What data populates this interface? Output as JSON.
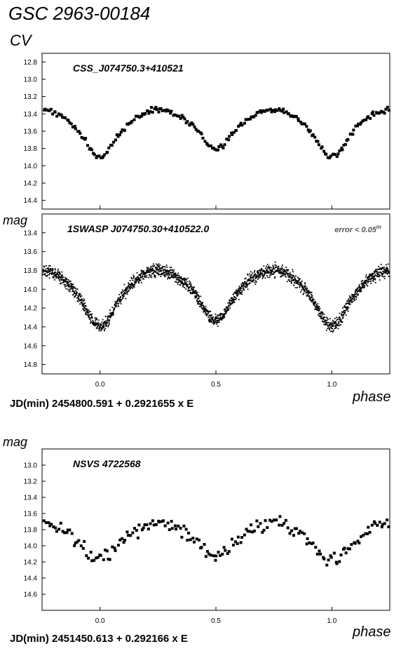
{
  "header": {
    "title": "GSC 2963-00184",
    "band": "CV"
  },
  "labels": {
    "ylabel_top": "mag",
    "ylabel_bottom": "mag",
    "xlabel_top": "phase",
    "xlabel_bottom": "phase",
    "ephemeris_top": "JD(min) 2454800.591  + 0.2921655 x E",
    "ephemeris_bottom": "JD(min) 2451450.613  + 0.292166 x E"
  },
  "chart_data": [
    {
      "type": "scatter",
      "title": "CSS_J074750.3+410521",
      "xlabel": "",
      "ylabel": "mag",
      "xlim": [
        -0.25,
        1.25
      ],
      "ylim": [
        14.5,
        12.7
      ],
      "y_inverted": true,
      "yticks": [
        "12.8",
        "13.0",
        "13.2",
        "13.4",
        "13.6",
        "13.8",
        "14.0",
        "14.2",
        "14.4"
      ],
      "xticks": [],
      "curve": {
        "max": 13.35,
        "min_primary": 13.9,
        "min_secondary": 13.8,
        "eclipse_half_width": 0.09
      },
      "n_points": 240,
      "scatter": 0.025,
      "marker": "square",
      "seed": 11
    },
    {
      "type": "scatter",
      "title": "1SWASP  J074750.30+410522.0",
      "note": "error < 0.05",
      "note_sup": "m",
      "xlabel": "phase",
      "ylabel": "mag",
      "xlim": [
        -0.25,
        1.25
      ],
      "ylim": [
        14.9,
        13.2
      ],
      "y_inverted": true,
      "yticks": [
        "13.4",
        "13.6",
        "13.8",
        "14.0",
        "14.2",
        "14.4",
        "14.6",
        "14.8"
      ],
      "xticks": [
        "0.0",
        "0.5",
        "1.0"
      ],
      "curve": {
        "max": 13.8,
        "min_primary": 14.4,
        "min_secondary": 14.33,
        "eclipse_half_width": 0.09
      },
      "n_points": 2200,
      "scatter": 0.055,
      "marker": "dot",
      "seed": 23
    },
    {
      "type": "scatter",
      "title": "NSVS 4722568",
      "xlabel": "phase",
      "ylabel": "mag",
      "xlim": [
        -0.25,
        1.25
      ],
      "ylim": [
        14.8,
        12.8
      ],
      "y_inverted": true,
      "yticks": [
        "13.0",
        "13.2",
        "13.4",
        "13.6",
        "13.8",
        "14.0",
        "14.2",
        "14.4",
        "14.6"
      ],
      "xticks": [
        "0.0",
        "0.5",
        "1.0"
      ],
      "curve": {
        "max": 13.72,
        "min_primary": 14.15,
        "min_secondary": 14.1,
        "eclipse_half_width": 0.12
      },
      "n_points": 190,
      "scatter": 0.07,
      "marker": "square",
      "seed": 37
    }
  ]
}
